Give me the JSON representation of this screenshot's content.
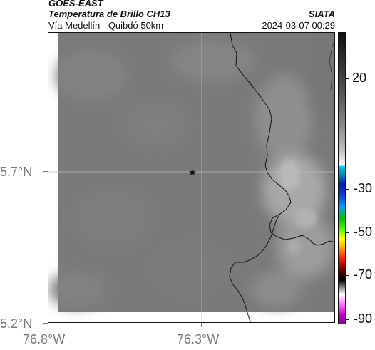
{
  "header": {
    "satellite": "GOES-EAST",
    "product": "Temperatura de Brillo CH13",
    "region": "Vía Medellín - Quibdó 50km",
    "agency": "SIATA",
    "datetime": "2024-03-07 00:29"
  },
  "map": {
    "background_color": "#7a7a7a",
    "cloud_tone": "#8c8c8c",
    "boundary_color": "#111111",
    "gridline_color": "#bbbbbb",
    "marker": {
      "symbol": "★",
      "label": ""
    }
  },
  "axes": {
    "y_ticks": [
      "5.7°N",
      "5.2°N"
    ],
    "x_ticks": [
      "76.8°W",
      "76.3°W"
    ]
  },
  "colorbar": {
    "tick_labels": [
      "20",
      "-30",
      "-50",
      "-70",
      "-90"
    ]
  }
}
